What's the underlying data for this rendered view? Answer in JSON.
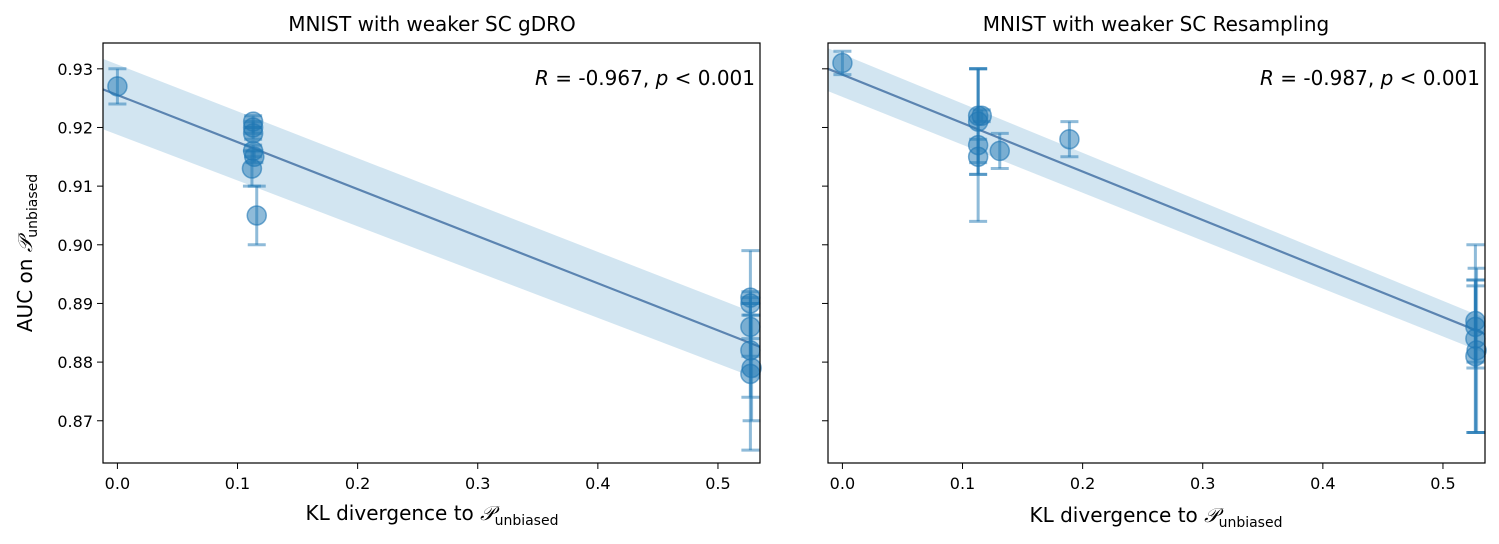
{
  "chart_data": [
    {
      "type": "scatter",
      "title": "MNIST with weaker SC gDRO",
      "xlabel_main": "KL divergence to ",
      "xlabel_symbol": "𝒫",
      "xlabel_subscript": "unbiased",
      "ylabel_main": "AUC on ",
      "ylabel_symbol": "𝒫",
      "ylabel_subscript": "unbiased",
      "xlim": [
        -0.012,
        0.535
      ],
      "ylim": [
        0.8628,
        0.9344
      ],
      "xticks": [
        0.0,
        0.1,
        0.2,
        0.3,
        0.4,
        0.5
      ],
      "xtick_labels": [
        "0.0",
        "0.1",
        "0.2",
        "0.3",
        "0.4",
        "0.5"
      ],
      "yticks": [
        0.87,
        0.88,
        0.89,
        0.9,
        0.91,
        0.92,
        0.93
      ],
      "ytick_labels": [
        "0.87",
        "0.88",
        "0.89",
        "0.90",
        "0.91",
        "0.92",
        "0.93"
      ],
      "annotation": {
        "r_symbol": "R",
        "r_text": " = -0.967, ",
        "p_symbol": "p",
        "p_text": " < 0.001"
      },
      "fit": {
        "x": [
          -0.012,
          0.535
        ],
        "y": [
          0.9265,
          0.8826
        ]
      },
      "band": {
        "upper": [
          0.9317,
          0.888
        ],
        "lower": [
          0.9197,
          0.877
        ]
      },
      "points": [
        {
          "x": 0.0,
          "y": 0.927,
          "err": 0.003
        },
        {
          "x": 0.113,
          "y": 0.921,
          "err": 0.001
        },
        {
          "x": 0.113,
          "y": 0.92,
          "err": 0.001
        },
        {
          "x": 0.113,
          "y": 0.919,
          "err": 0.001
        },
        {
          "x": 0.113,
          "y": 0.916,
          "err": 0.001
        },
        {
          "x": 0.114,
          "y": 0.915,
          "err": 0.001
        },
        {
          "x": 0.112,
          "y": 0.913,
          "err": 0.003
        },
        {
          "x": 0.116,
          "y": 0.905,
          "err": 0.005
        },
        {
          "x": 0.527,
          "y": 0.891,
          "err": 0.001
        },
        {
          "x": 0.527,
          "y": 0.89,
          "err": 0.009
        },
        {
          "x": 0.527,
          "y": 0.886,
          "err": 0.002
        },
        {
          "x": 0.527,
          "y": 0.882,
          "err": 0.008
        },
        {
          "x": 0.528,
          "y": 0.879,
          "err": 0.009
        },
        {
          "x": 0.527,
          "y": 0.878,
          "err": 0.013
        }
      ]
    },
    {
      "type": "scatter",
      "title": "MNIST with weaker SC Resampling",
      "xlabel_main": "KL divergence to ",
      "xlabel_symbol": "𝒫",
      "xlabel_subscript": "unbiased",
      "xlim": [
        -0.012,
        0.535
      ],
      "ylim": [
        0.8628,
        0.9344
      ],
      "xticks": [
        0.0,
        0.1,
        0.2,
        0.3,
        0.4,
        0.5
      ],
      "xtick_labels": [
        "0.0",
        "0.1",
        "0.2",
        "0.3",
        "0.4",
        "0.5"
      ],
      "yticks": [
        0.87,
        0.88,
        0.89,
        0.9,
        0.91,
        0.92,
        0.93
      ],
      "annotation": {
        "r_symbol": "R",
        "r_text": " = -0.987, ",
        "p_symbol": "p",
        "p_text": " < 0.001"
      },
      "fit": {
        "x": [
          -0.012,
          0.535
        ],
        "y": [
          0.93,
          0.8848
        ]
      },
      "band": {
        "upper": [
          0.9335,
          0.8875
        ],
        "lower": [
          0.9262,
          0.8815
        ]
      },
      "points": [
        {
          "x": 0.0,
          "y": 0.931,
          "err": 0.002
        },
        {
          "x": 0.113,
          "y": 0.922,
          "err": 0.008
        },
        {
          "x": 0.113,
          "y": 0.921,
          "err": 0.009
        },
        {
          "x": 0.113,
          "y": 0.917,
          "err": 0.013
        },
        {
          "x": 0.113,
          "y": 0.915,
          "err": 0.003
        },
        {
          "x": 0.116,
          "y": 0.922,
          "err": 0.001
        },
        {
          "x": 0.131,
          "y": 0.916,
          "err": 0.003
        },
        {
          "x": 0.189,
          "y": 0.918,
          "err": 0.003
        },
        {
          "x": 0.527,
          "y": 0.887,
          "err": 0.007
        },
        {
          "x": 0.527,
          "y": 0.886,
          "err": 0.007
        },
        {
          "x": 0.527,
          "y": 0.884,
          "err": 0.016
        },
        {
          "x": 0.528,
          "y": 0.882,
          "err": 0.014
        },
        {
          "x": 0.527,
          "y": 0.881,
          "err": 0.013
        }
      ]
    }
  ],
  "style": {
    "point_color": "#1f77b4",
    "fit_color": "#5b84b1",
    "band_color": "#a6cbe4"
  }
}
